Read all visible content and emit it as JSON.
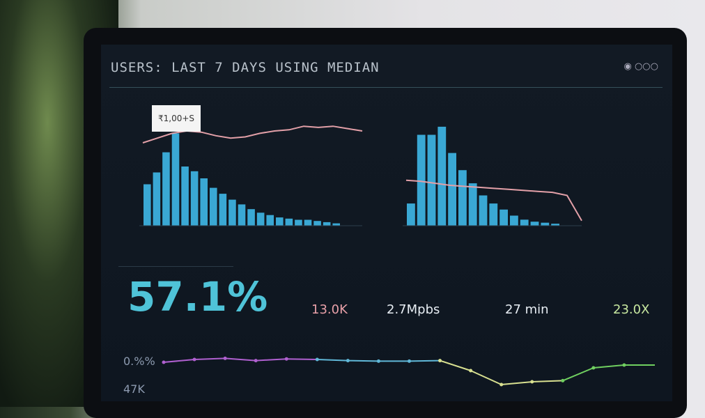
{
  "dashboard": {
    "title": "USERS: LAST 7 DAYS USING MEDIAN",
    "header_icons": [
      "search-icon",
      "more-icon"
    ],
    "tooltip": "₹1,00+S",
    "big_metric": "57.1%",
    "metrics": [
      {
        "value": "13.0K",
        "color": "#e8a0a8"
      },
      {
        "value": "2.7Mpbs",
        "color": "#e8eef4"
      },
      {
        "value": "27 min",
        "color": "#e8eef4"
      },
      {
        "value": "23.0X",
        "color": "#c8e8a0"
      }
    ],
    "bottom_labels": [
      "0.%%",
      "47K"
    ]
  },
  "chart_data": [
    {
      "type": "bar",
      "series": [
        {
          "values": [
            0.35,
            0.45,
            0.62,
            0.78,
            0.5,
            0.46,
            0.4,
            0.32,
            0.27,
            0.22,
            0.18,
            0.14,
            0.11,
            0.09,
            0.07,
            0.06,
            0.05,
            0.05,
            0.04,
            0.03,
            0.02
          ]
        }
      ],
      "overlay_line": [
        0.7,
        0.74,
        0.78,
        0.8,
        0.79,
        0.76,
        0.74,
        0.75,
        0.78,
        0.8,
        0.81,
        0.84,
        0.83,
        0.84,
        0.82,
        0.8
      ],
      "color": "#3fb8e8",
      "line_color": "#e3a0a8"
    },
    {
      "type": "bar",
      "series": [
        {
          "values": [
            0.22,
            0.9,
            0.9,
            0.98,
            0.72,
            0.55,
            0.42,
            0.3,
            0.22,
            0.16,
            0.1,
            0.06,
            0.04,
            0.03,
            0.02
          ]
        }
      ],
      "overlay_line": [
        0.45,
        0.44,
        0.42,
        0.4,
        0.39,
        0.38,
        0.37,
        0.36,
        0.35,
        0.34,
        0.33,
        0.3,
        0.05
      ],
      "color": "#3fb8e8",
      "line_color": "#e3a0a8"
    },
    {
      "type": "line",
      "series": [
        {
          "values": [
            0.55,
            0.6,
            0.62,
            0.58,
            0.61,
            0.6,
            0.58,
            0.57,
            0.57,
            0.58,
            0.4,
            0.15,
            0.2,
            0.22,
            0.45,
            0.5,
            0.5
          ]
        }
      ],
      "colors": [
        "#b060d0",
        "#60b8d8",
        "#d8e090",
        "#70d060"
      ]
    }
  ]
}
